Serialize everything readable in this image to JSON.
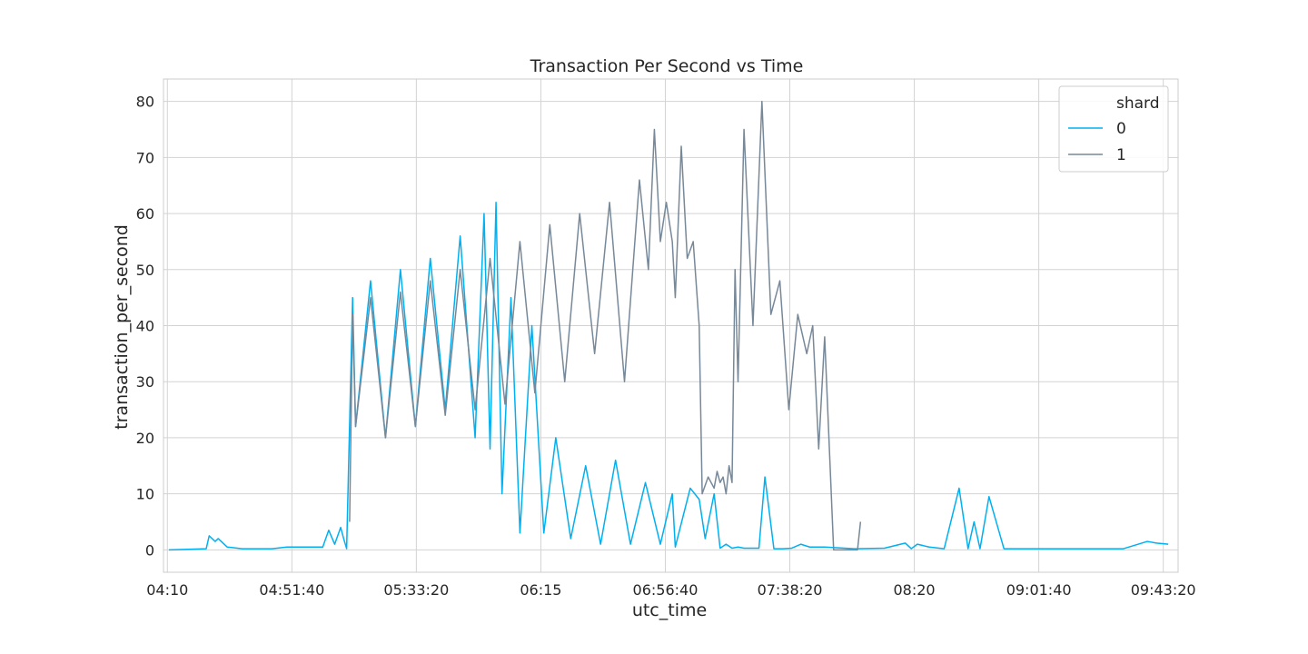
{
  "chart_data": {
    "type": "line",
    "title": "Transaction Per Second vs Time",
    "xlabel": "utc_time",
    "ylabel": "transaction_per_second",
    "x_ticks": [
      "04:10",
      "04:51:40",
      "05:33:20",
      "06:15",
      "06:56:40",
      "07:38:20",
      "08:20",
      "09:01:40",
      "09:43:20"
    ],
    "x_tick_values_minutes": [
      250,
      291.67,
      333.33,
      375,
      416.67,
      458.33,
      500,
      541.67,
      583.33
    ],
    "xlim_minutes": [
      248.7,
      588.3
    ],
    "y_ticks": [
      "0",
      "10",
      "20",
      "30",
      "40",
      "50",
      "60",
      "70",
      "80"
    ],
    "ylim": [
      -4,
      84
    ],
    "grid": true,
    "legend": {
      "title": "shard",
      "position": "top-right",
      "entries": [
        "0",
        "1"
      ]
    },
    "colors": {
      "series_0": "#00B0F0",
      "series_1": "#778899",
      "grid": "#d3d3d3",
      "axis_frame": "#cccccc"
    },
    "series": [
      {
        "name": "0",
        "x_minutes": [
          250.5,
          263,
          264,
          266,
          267,
          270,
          275,
          285,
          290,
          298,
          302,
          304,
          306,
          308,
          309,
          310,
          312,
          313,
          318,
          323,
          328,
          333,
          338,
          343,
          348,
          353,
          356,
          358,
          360,
          362,
          365,
          368,
          372,
          376,
          380,
          385,
          390,
          395,
          400,
          405,
          410,
          415,
          419,
          420,
          425,
          428,
          430,
          433,
          435,
          437,
          439,
          441,
          443,
          446,
          448,
          450,
          453,
          456,
          459,
          462,
          465,
          470,
          480,
          490,
          497,
          499,
          501,
          505,
          510,
          515,
          518,
          520,
          522,
          525,
          530,
          535,
          540,
          546,
          550,
          560,
          570,
          578,
          581,
          585
        ],
        "y": [
          0,
          0.2,
          2.5,
          1.5,
          2.0,
          0.5,
          0.2,
          0.2,
          0.5,
          0.5,
          0.5,
          3.5,
          1.0,
          4.0,
          2.0,
          0.2,
          45,
          22,
          48,
          20,
          50,
          22,
          52,
          25,
          56,
          20,
          60,
          18,
          62,
          10,
          45,
          3,
          40,
          3,
          20,
          2,
          15,
          1,
          16,
          1,
          12,
          1,
          10,
          0.5,
          11,
          9,
          2,
          10,
          0.3,
          1,
          0.3,
          0.5,
          0.3,
          0.3,
          0.3,
          13,
          0.2,
          0.2,
          0.3,
          1.0,
          0.5,
          0.5,
          0.2,
          0.3,
          1.2,
          0.2,
          1.0,
          0.5,
          0.2,
          11,
          0.2,
          5,
          0.2,
          9.5,
          0.2,
          0.2,
          0.2,
          0.2,
          0.2,
          0.2,
          0.2,
          1.5,
          1.2,
          1.0
        ]
      },
      {
        "name": "1",
        "x_minutes": [
          311,
          312,
          313,
          318,
          323,
          328,
          333,
          338,
          343,
          348,
          353,
          358,
          363,
          368,
          373,
          378,
          383,
          388,
          393,
          398,
          403,
          408,
          411,
          413,
          415,
          417,
          419,
          420,
          422,
          424,
          426,
          428,
          429,
          431,
          433,
          434,
          435,
          436,
          437,
          438,
          439,
          440,
          441,
          443,
          446,
          449,
          452,
          455,
          458,
          461,
          464,
          466,
          468,
          470,
          473,
          476,
          481,
          482
        ],
        "y": [
          5,
          42,
          22,
          45,
          20,
          46,
          22,
          48,
          24,
          50,
          25,
          52,
          26,
          55,
          28,
          58,
          30,
          60,
          35,
          62,
          30,
          66,
          50,
          75,
          55,
          62,
          55,
          45,
          72,
          52,
          55,
          40,
          10,
          13,
          11,
          14,
          12,
          13,
          10,
          15,
          12,
          50,
          30,
          75,
          40,
          80,
          42,
          48,
          25,
          42,
          35,
          40,
          18,
          38,
          0,
          0,
          0,
          5
        ]
      }
    ]
  }
}
